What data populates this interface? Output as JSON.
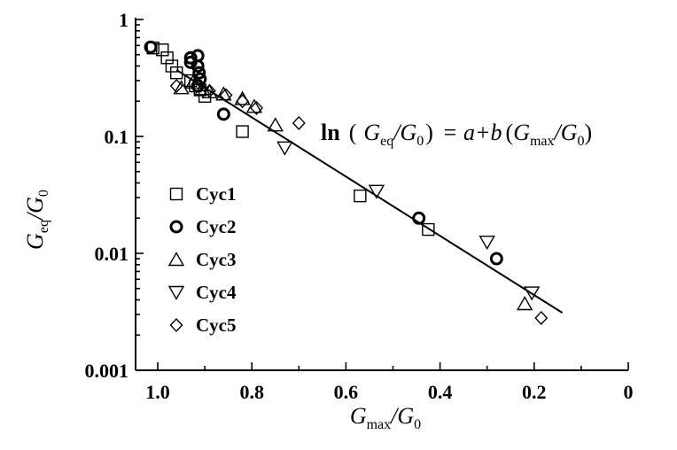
{
  "chart_data": {
    "type": "scatter",
    "title": "",
    "xlim": [
      1.05,
      0
    ],
    "ylim": [
      0.001,
      1
    ],
    "yscale": "log",
    "x_reversed": true,
    "grid": false,
    "legend_position": "left-middle",
    "xlabel": {
      "main": "G",
      "sub": "max",
      "slash": "/G",
      "sub2": "0"
    },
    "ylabel": {
      "main": "G",
      "sub": "eq",
      "slash": "/G",
      "sub2": "0"
    },
    "x_ticks": [
      {
        "value": 1.0,
        "label": "1.0"
      },
      {
        "value": 0.8,
        "label": "0.8"
      },
      {
        "value": 0.6,
        "label": "0.6"
      },
      {
        "value": 0.4,
        "label": "0.4"
      },
      {
        "value": 0.2,
        "label": "0.2"
      },
      {
        "value": 0,
        "label": "0"
      }
    ],
    "y_ticks": [
      {
        "value": 1,
        "label": "1"
      },
      {
        "value": 0.1,
        "label": "0.1"
      },
      {
        "value": 0.01,
        "label": "0.01"
      },
      {
        "value": 0.001,
        "label": "0.001"
      }
    ],
    "series": [
      {
        "name": "Cyc1",
        "marker": "square",
        "points": [
          [
            1.01,
            0.57
          ],
          [
            0.99,
            0.55
          ],
          [
            0.98,
            0.47
          ],
          [
            0.97,
            0.4
          ],
          [
            0.96,
            0.35
          ],
          [
            0.93,
            0.3
          ],
          [
            0.92,
            0.27
          ],
          [
            0.91,
            0.25
          ],
          [
            0.9,
            0.22
          ],
          [
            0.82,
            0.11
          ],
          [
            0.57,
            0.031
          ],
          [
            0.425,
            0.016
          ]
        ]
      },
      {
        "name": "Cyc2",
        "marker": "circle",
        "points": [
          [
            1.015,
            0.58
          ],
          [
            0.93,
            0.47
          ],
          [
            0.93,
            0.43
          ],
          [
            0.915,
            0.49
          ],
          [
            0.915,
            0.4
          ],
          [
            0.912,
            0.35
          ],
          [
            0.91,
            0.31
          ],
          [
            0.915,
            0.27
          ],
          [
            0.86,
            0.155
          ],
          [
            0.445,
            0.02
          ],
          [
            0.28,
            0.009
          ]
        ]
      },
      {
        "name": "Cyc3",
        "marker": "triangle-up",
        "points": [
          [
            0.95,
            0.26
          ],
          [
            0.925,
            0.29
          ],
          [
            0.905,
            0.255
          ],
          [
            0.89,
            0.24
          ],
          [
            0.86,
            0.23
          ],
          [
            0.82,
            0.21
          ],
          [
            0.795,
            0.18
          ],
          [
            0.75,
            0.125
          ],
          [
            0.22,
            0.0037
          ]
        ]
      },
      {
        "name": "Cyc4",
        "marker": "triangle-down",
        "points": [
          [
            0.73,
            0.08
          ],
          [
            0.535,
            0.034
          ],
          [
            0.3,
            0.0125
          ],
          [
            0.205,
            0.0046
          ]
        ]
      },
      {
        "name": "Cyc5",
        "marker": "diamond",
        "points": [
          [
            0.96,
            0.27
          ],
          [
            0.89,
            0.245
          ],
          [
            0.855,
            0.225
          ],
          [
            0.82,
            0.2
          ],
          [
            0.79,
            0.175
          ],
          [
            0.7,
            0.13
          ],
          [
            0.185,
            0.0028
          ]
        ]
      }
    ],
    "fit_line": {
      "x_start": 0.96,
      "y_start": 0.37,
      "x_end": 0.14,
      "y_end": 0.0031
    },
    "annotation": {
      "ln": "ln",
      "open": "(",
      "g1": "G",
      "s1": "eq",
      "slash1": "/G",
      "s2": "0",
      "close": ")",
      "rhs": "= a+b",
      "open2": "(",
      "g2": "G",
      "s3": "max",
      "slash2": "/G",
      "s4": "0",
      "close2": ")"
    }
  }
}
